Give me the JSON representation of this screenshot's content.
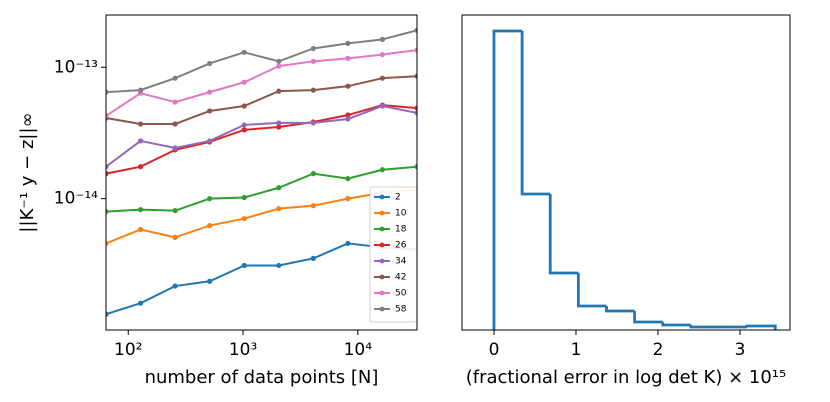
{
  "chart_data": [
    {
      "type": "line",
      "x": [
        64,
        128,
        256,
        512,
        1024,
        2048,
        4096,
        8192,
        16384,
        32768
      ],
      "xscale": "log",
      "yscale": "log",
      "xlim": [
        64,
        32768
      ],
      "ylim": [
        1e-15,
        2.5e-13
      ],
      "xticks": [
        {
          "value": 100,
          "label": "10²"
        },
        {
          "value": 1000,
          "label": "10³"
        },
        {
          "value": 10000,
          "label": "10⁴"
        }
      ],
      "yticks": [
        {
          "value": 1e-14,
          "label": "10⁻¹⁴"
        },
        {
          "value": 1e-13,
          "label": "10⁻¹³"
        }
      ],
      "xlabel": "number of data points [N]",
      "ylabel": "||K⁻¹ y − z||∞",
      "legend": "lower right",
      "series": [
        {
          "name": "2",
          "color": "#1f77b4",
          "values": [
            1.32e-15,
            1.6e-15,
            2.16e-15,
            2.35e-15,
            3.1e-15,
            3.1e-15,
            3.51e-15,
            4.56e-15,
            4.25e-15,
            4.1e-15
          ]
        },
        {
          "name": "10",
          "color": "#ff7f0e",
          "values": [
            4.56e-15,
            5.82e-15,
            5.07e-15,
            6.24e-15,
            7.05e-15,
            8.39e-15,
            8.84e-15,
            1e-14,
            1.11e-14,
            1.17e-14
          ]
        },
        {
          "name": "18",
          "color": "#2ca02c",
          "values": [
            7.97e-15,
            8.25e-15,
            8.1e-15,
            1e-14,
            1.02e-14,
            1.21e-14,
            1.55e-14,
            1.42e-14,
            1.66e-14,
            1.75e-14
          ]
        },
        {
          "name": "26",
          "color": "#d62728",
          "values": [
            1.55e-14,
            1.75e-14,
            2.35e-14,
            2.7e-14,
            3.34e-14,
            3.51e-14,
            3.83e-14,
            4.33e-14,
            5.15e-14,
            4.89e-14
          ]
        },
        {
          "name": "34",
          "color": "#9467bd",
          "values": [
            1.75e-14,
            2.75e-14,
            2.43e-14,
            2.75e-14,
            3.64e-14,
            3.77e-14,
            3.77e-14,
            4.04e-14,
            5.07e-14,
            4.49e-14
          ]
        },
        {
          "name": "42",
          "color": "#8c564b",
          "values": [
            4.11e-14,
            3.7e-14,
            3.7e-14,
            4.65e-14,
            5.07e-14,
            6.58e-14,
            6.7e-14,
            7.18e-14,
            8.26e-14,
            8.55e-14
          ]
        },
        {
          "name": "50",
          "color": "#e377c2",
          "values": [
            4.26e-14,
            6.35e-14,
            5.43e-14,
            6.47e-14,
            7.69e-14,
            1.02e-13,
            1.11e-13,
            1.17e-13,
            1.25e-13,
            1.35e-13
          ]
        },
        {
          "name": "58",
          "color": "#7f7f7f",
          "values": [
            6.47e-14,
            6.7e-14,
            8.26e-14,
            1.07e-13,
            1.3e-13,
            1.11e-13,
            1.39e-13,
            1.52e-13,
            1.63e-13,
            1.91e-13
          ]
        }
      ]
    },
    {
      "type": "histogram",
      "bins": [
        0,
        0.343,
        0.686,
        1.029,
        1.372,
        1.715,
        2.058,
        2.401,
        2.744,
        3.087,
        3.43
      ],
      "values": [
        299,
        136,
        57,
        24,
        19,
        8,
        5,
        3,
        3,
        4
      ],
      "color": "#1f77b4",
      "xlim": [
        -0.39,
        3.61
      ],
      "ylim": [
        0,
        315
      ],
      "xticks": [
        0,
        1,
        2,
        3
      ],
      "xlabel": "(fractional error in log det K) × 10¹⁵"
    }
  ]
}
